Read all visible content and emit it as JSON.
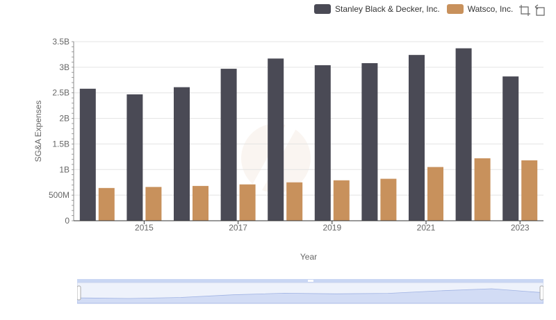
{
  "legend": {
    "items": [
      {
        "label": "Stanley Black & Decker, Inc.",
        "color": "#4a4a55"
      },
      {
        "label": "Watsco, Inc.",
        "color": "#c8915c"
      }
    ]
  },
  "toolbox": {
    "icons": [
      "zoom-select-icon",
      "zoom-reset-icon"
    ]
  },
  "chart_data": {
    "type": "bar",
    "categories": [
      "2014",
      "2015",
      "2016",
      "2017",
      "2018",
      "2019",
      "2020",
      "2021",
      "2022",
      "2023"
    ],
    "series": [
      {
        "name": "Stanley Black & Decker, Inc.",
        "values": [
          2580000000.0,
          2470000000.0,
          2610000000.0,
          2970000000.0,
          3170000000.0,
          3040000000.0,
          3080000000.0,
          3240000000.0,
          3370000000.0,
          2820000000.0
        ]
      },
      {
        "name": "Watsco, Inc.",
        "values": [
          640000000.0,
          660000000.0,
          680000000.0,
          710000000.0,
          750000000.0,
          790000000.0,
          820000000.0,
          1050000000.0,
          1220000000.0,
          1180000000.0
        ]
      }
    ],
    "colors": [
      "#4a4a55",
      "#c8915c"
    ],
    "xlabel": "Year",
    "ylabel": "SG&A Expenses",
    "ylim": [
      0,
      3500000000
    ],
    "yticks": [
      "0",
      "500M",
      "1B",
      "1.5B",
      "2B",
      "2.5B",
      "3B",
      "3.5B"
    ],
    "xtick_labels": [
      "2015",
      "2017",
      "2019",
      "2021",
      "2023"
    ],
    "grid": true,
    "legend_position": "top-right",
    "slider": {
      "start": 0,
      "end": 100
    }
  }
}
